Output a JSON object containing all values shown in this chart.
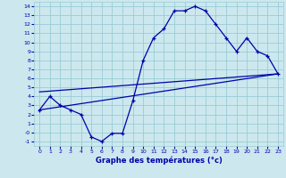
{
  "xlabel": "Graphe des températures (°c)",
  "bg_color": "#cce8ee",
  "grid_color": "#99ccd6",
  "line_color": "#0000aa",
  "xlim": [
    -0.5,
    23.5
  ],
  "ylim": [
    -1.5,
    14.5
  ],
  "xticks": [
    0,
    1,
    2,
    3,
    4,
    5,
    6,
    7,
    8,
    9,
    10,
    11,
    12,
    13,
    14,
    15,
    16,
    17,
    18,
    19,
    20,
    21,
    22,
    23
  ],
  "yticks": [
    -1,
    0,
    1,
    2,
    3,
    4,
    5,
    6,
    7,
    8,
    9,
    10,
    11,
    12,
    13,
    14
  ],
  "curve_x": [
    0,
    1,
    2,
    3,
    4,
    5,
    6,
    7,
    8,
    9,
    10,
    11,
    12,
    13,
    14,
    15,
    16,
    17,
    18,
    19,
    20,
    21,
    22,
    23
  ],
  "curve_y": [
    2.5,
    4.0,
    3.0,
    2.5,
    2.0,
    -0.5,
    -1.0,
    -0.1,
    -0.1,
    3.5,
    8.0,
    10.5,
    11.5,
    13.5,
    13.5,
    14.0,
    13.5,
    12.0,
    10.5,
    9.0,
    10.5,
    9.0,
    8.5,
    6.5
  ],
  "trend1_x": [
    0,
    23
  ],
  "trend1_y": [
    2.5,
    6.5
  ],
  "trend2_x": [
    0,
    23
  ],
  "trend2_y": [
    4.5,
    6.5
  ]
}
